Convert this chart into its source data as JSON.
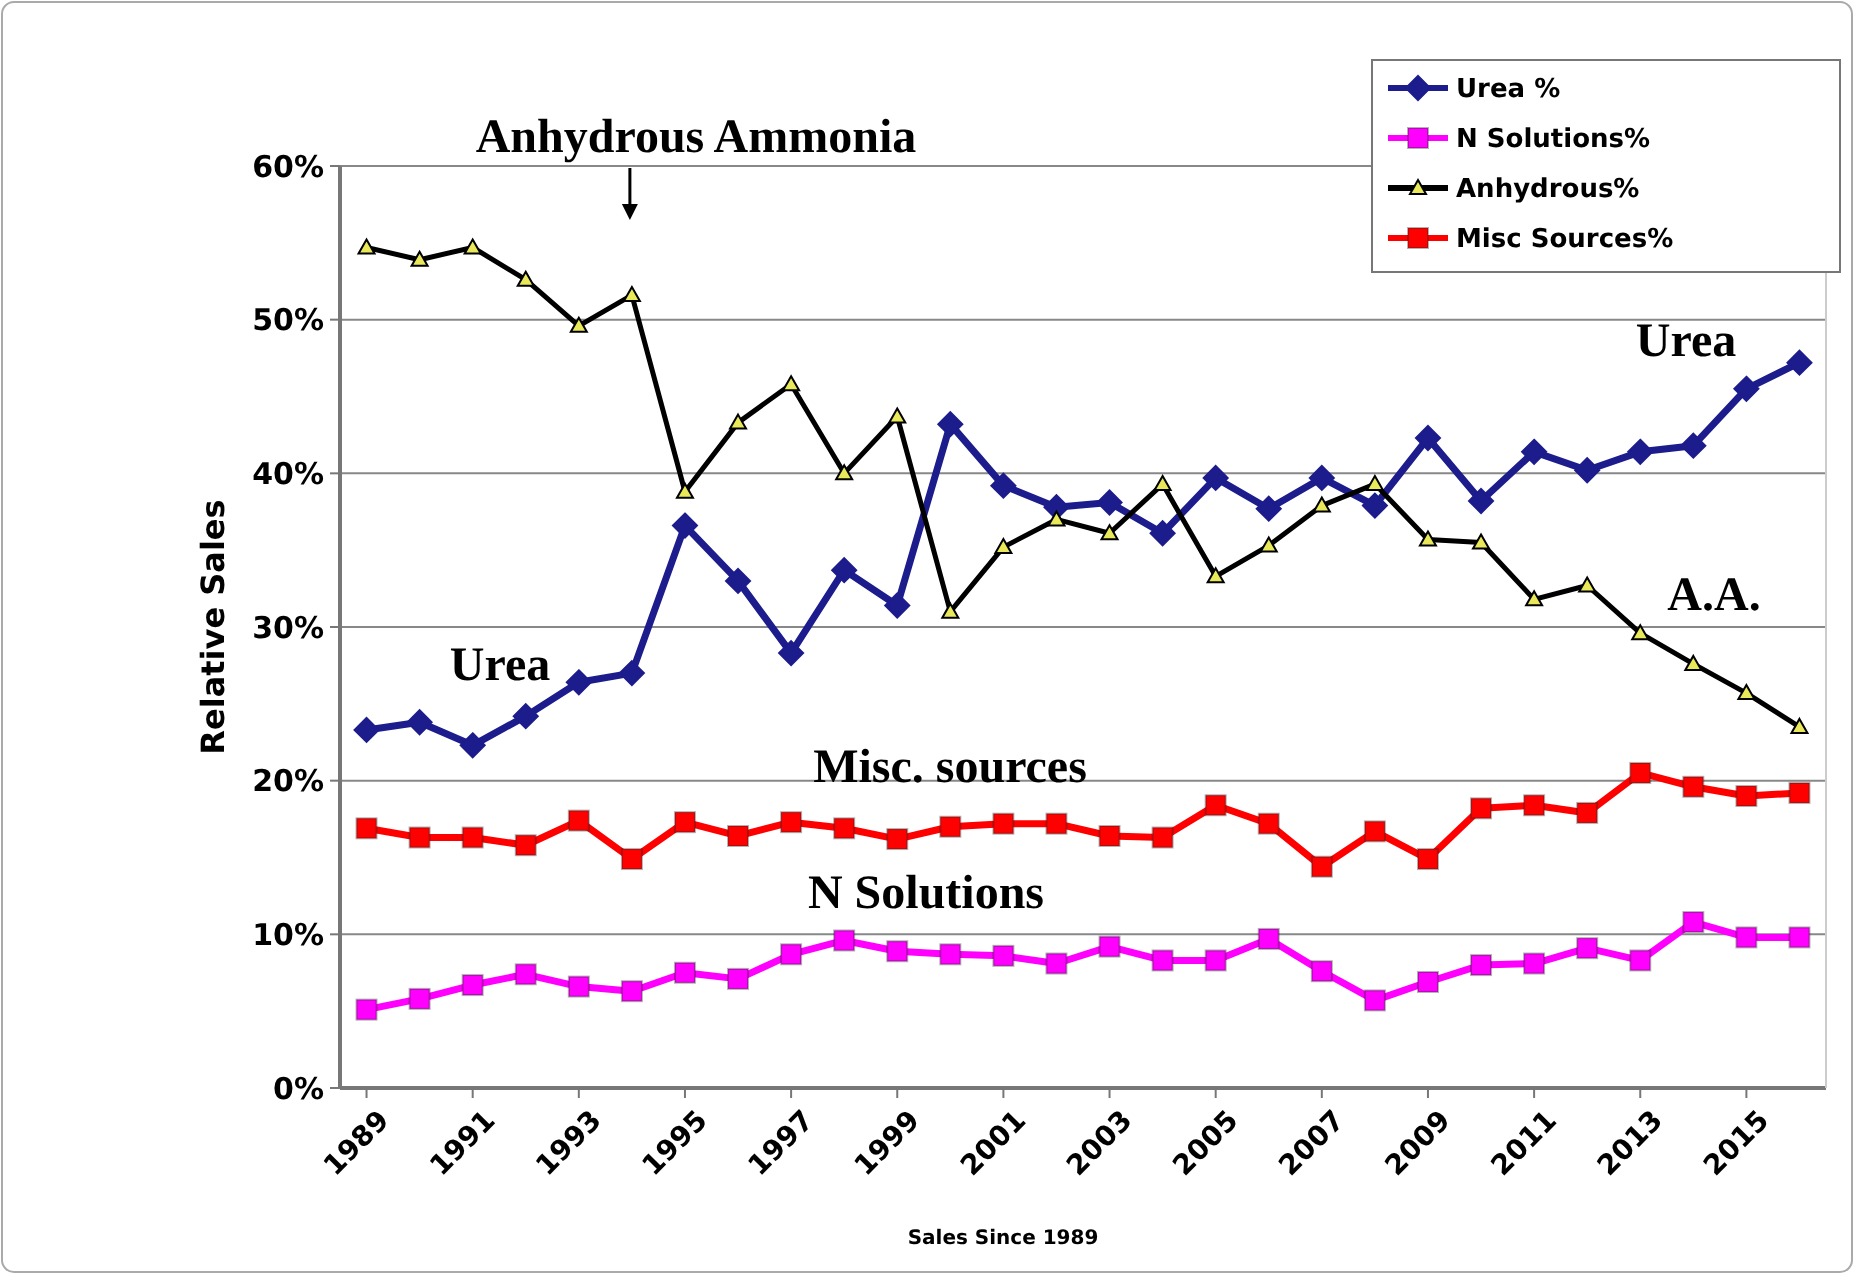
{
  "chart_data": {
    "type": "line",
    "xlabel": "Sales Since 1989",
    "ylabel": "Relative Sales",
    "x": [
      1989,
      1990,
      1991,
      1992,
      1993,
      1994,
      1995,
      1996,
      1997,
      1998,
      1999,
      2000,
      2001,
      2002,
      2003,
      2004,
      2005,
      2006,
      2007,
      2008,
      2009,
      2010,
      2011,
      2012,
      2013,
      2014,
      2015,
      2016
    ],
    "xlim": [
      1988.5,
      2016.5
    ],
    "xticks": [
      1989,
      1991,
      1993,
      1995,
      1997,
      1999,
      2001,
      2003,
      2005,
      2007,
      2009,
      2011,
      2013,
      2015
    ],
    "ylim": [
      0,
      60
    ],
    "yticks": [
      {
        "value": 0,
        "label": "0%"
      },
      {
        "value": 10,
        "label": "10%"
      },
      {
        "value": 20,
        "label": "20%"
      },
      {
        "value": 30,
        "label": "30%"
      },
      {
        "value": 40,
        "label": "40%"
      },
      {
        "value": 50,
        "label": "50%"
      },
      {
        "value": 60,
        "label": "60%"
      }
    ],
    "grid": "y",
    "legend": "top right",
    "line_style": "solid",
    "series": [
      {
        "name": "Urea %",
        "color": "#1c1c8c",
        "marker": "diamond",
        "values": [
          23.3,
          23.8,
          22.3,
          24.2,
          26.4,
          27.0,
          36.6,
          33.0,
          28.3,
          33.7,
          31.4,
          43.2,
          39.2,
          37.8,
          38.1,
          36.1,
          39.7,
          37.7,
          39.7,
          37.9,
          42.3,
          38.2,
          41.4,
          40.2,
          41.4,
          41.8,
          45.5,
          47.2
        ]
      },
      {
        "name": "N Solutions%",
        "color": "#ff00ff",
        "marker": "square",
        "values": [
          5.1,
          5.8,
          6.7,
          7.4,
          6.6,
          6.3,
          7.5,
          7.1,
          8.7,
          9.6,
          8.9,
          8.7,
          8.6,
          8.1,
          9.2,
          8.3,
          8.3,
          9.7,
          7.6,
          5.7,
          6.9,
          8.0,
          8.1,
          9.1,
          8.3,
          10.8,
          9.8,
          9.8
        ]
      },
      {
        "name": "Anhydrous%",
        "color": "#000000",
        "marker": "triangle",
        "values": [
          54.7,
          53.9,
          54.7,
          52.6,
          49.6,
          51.6,
          38.8,
          43.3,
          45.8,
          40.0,
          43.7,
          31.0,
          35.2,
          37.0,
          36.1,
          39.3,
          33.3,
          35.3,
          37.9,
          39.3,
          35.7,
          35.5,
          31.8,
          32.7,
          29.6,
          27.6,
          25.7,
          23.5
        ]
      },
      {
        "name": "Misc Sources%",
        "color": "#ff0000",
        "marker": "square",
        "values": [
          16.9,
          16.3,
          16.3,
          15.8,
          17.4,
          14.9,
          17.3,
          16.4,
          17.3,
          16.9,
          16.2,
          17.0,
          17.2,
          17.2,
          16.4,
          16.3,
          18.4,
          17.2,
          14.4,
          16.7,
          14.9,
          18.2,
          18.4,
          17.9,
          20.5,
          19.6,
          19.0,
          19.2
        ]
      }
    ],
    "annotations": [
      "Anhydrous Ammonia",
      "Urea",
      "Urea",
      "A.A.",
      "Misc. sources",
      "N Solutions"
    ]
  }
}
